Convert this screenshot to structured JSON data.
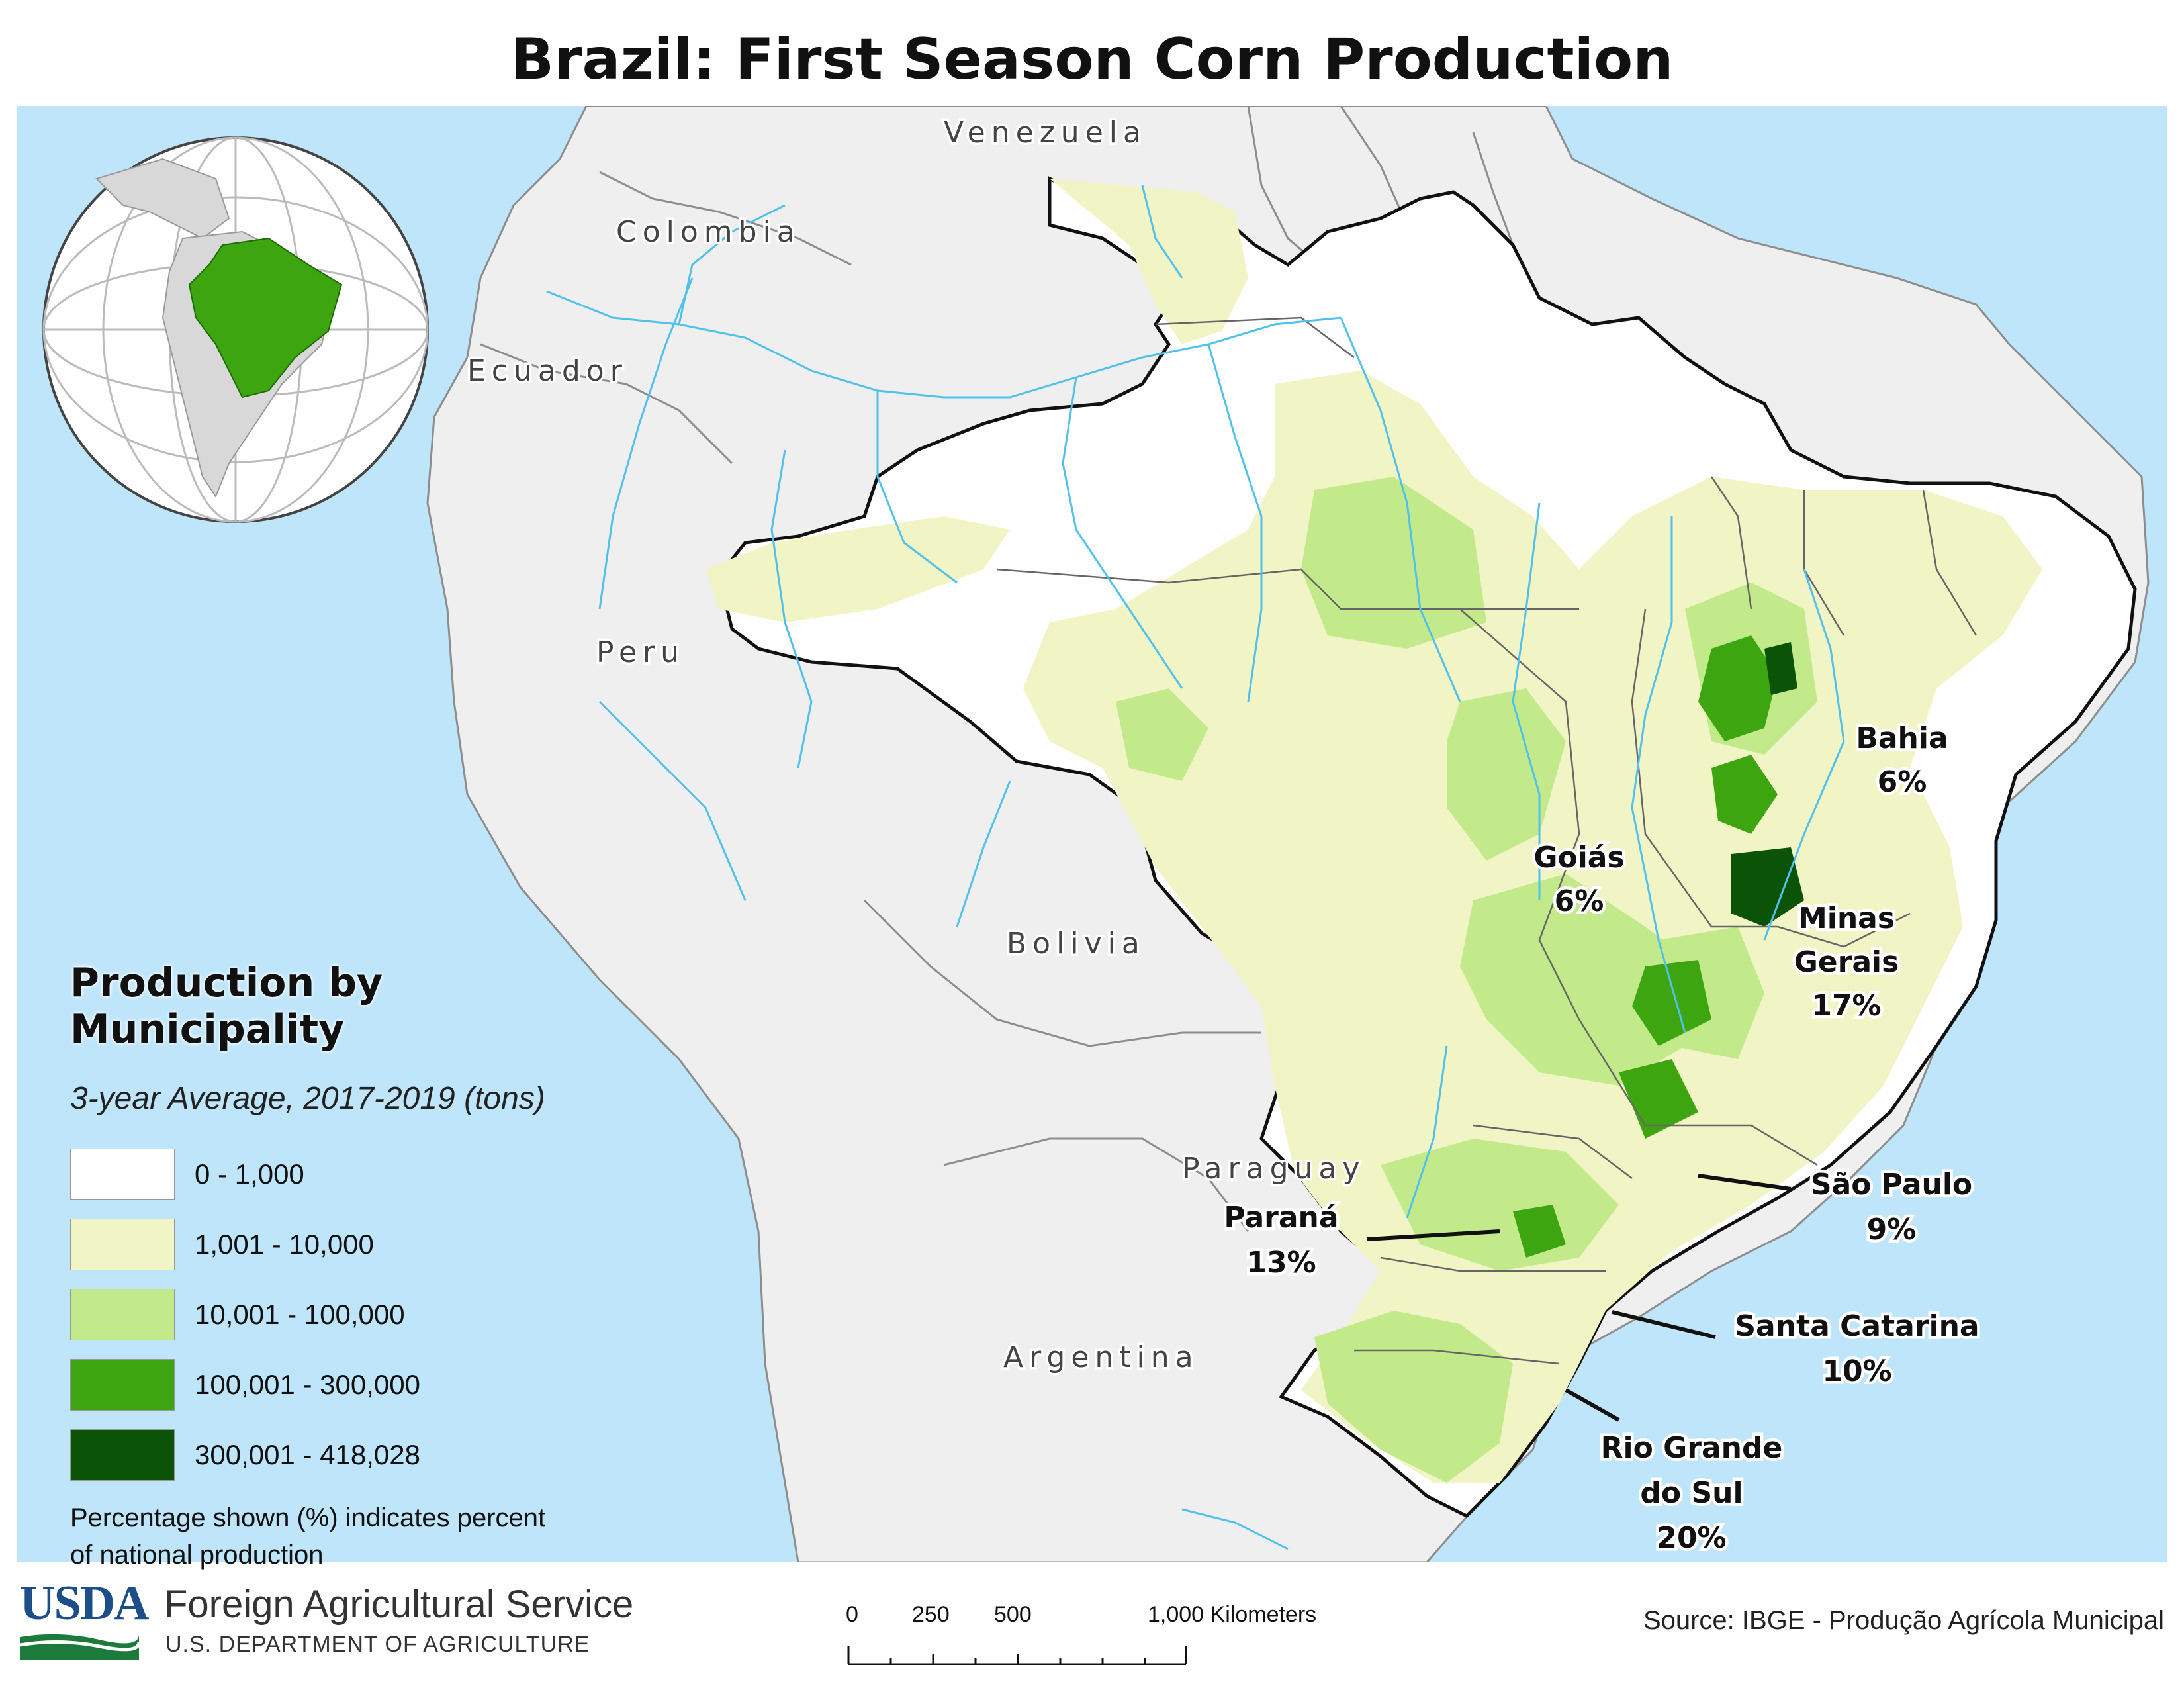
{
  "title": "Brazil: First Season Corn Production",
  "colors": {
    "ocean": "#bfe5fb",
    "neighbor_land": "#efefef",
    "river": "#4fc1ec",
    "class_0": "#ffffff",
    "class_1": "#f1f4c4",
    "class_2": "#c3ea8a",
    "class_3": "#3da50f",
    "class_4": "#0b5306"
  },
  "countries": {
    "venezuela": "Venezuela",
    "colombia": "Colombia",
    "ecuador": "Ecuador",
    "peru": "Peru",
    "bolivia": "Bolivia",
    "paraguay": "Paraguay",
    "argentina": "Argentina"
  },
  "states": [
    {
      "name": "Bahia",
      "share": "6%"
    },
    {
      "name": "Goiás",
      "share": "6%"
    },
    {
      "name": "Minas Gerais",
      "name_line1": "Minas",
      "name_line2": "Gerais",
      "share": "17%"
    },
    {
      "name": "São Paulo",
      "share": "9%"
    },
    {
      "name": "Paraná",
      "share": "13%"
    },
    {
      "name": "Santa Catarina",
      "share": "10%"
    },
    {
      "name": "Rio Grande do Sul",
      "name_line1": "Rio Grande",
      "name_line2": "do Sul",
      "share": "20%"
    }
  ],
  "legend": {
    "title": "Production by Municipality",
    "subtitle": "3-year Average, 2017-2019 (tons)",
    "classes": [
      {
        "label": "0 - 1,000",
        "color": "#ffffff"
      },
      {
        "label": "1,001 - 10,000",
        "color": "#f1f4c4"
      },
      {
        "label": "10,001 - 100,000",
        "color": "#c3ea8a"
      },
      {
        "label": "100,001 - 300,000",
        "color": "#3da50f"
      },
      {
        "label": "300,001 - 418,028",
        "color": "#0b5306"
      }
    ],
    "note": "Percentage shown (%) indicates percent of national production"
  },
  "footer": {
    "logo_text": "USDA",
    "agency": "Foreign Agricultural Service",
    "department": "U.S. DEPARTMENT OF AGRICULTURE",
    "source": "Source: IBGE - Produção Agrícola Municipal"
  },
  "scale": {
    "ticks": [
      "0",
      "250",
      "500",
      "1,000"
    ],
    "unit": "Kilometers"
  }
}
